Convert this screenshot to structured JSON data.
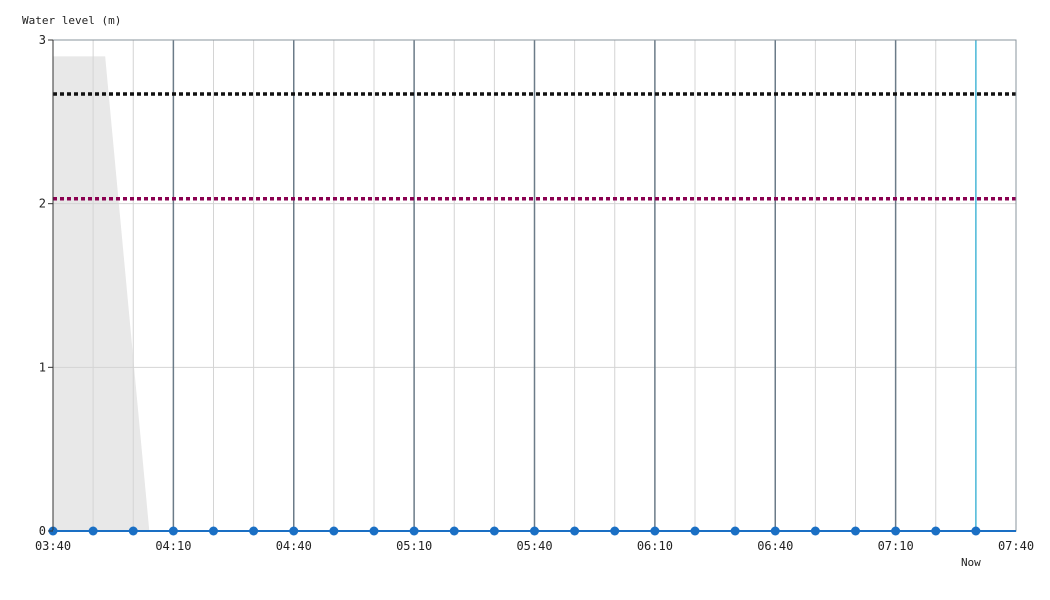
{
  "chart_data": {
    "type": "line",
    "ylabel": "Water level (m)",
    "xlabel": "",
    "ylim": [
      0,
      3
    ],
    "y_ticks": [
      "0",
      "1",
      "2",
      "3"
    ],
    "xlim": [
      "03:40",
      "07:40"
    ],
    "x_tick_labels": [
      "03:40",
      "04:10",
      "04:40",
      "05:10",
      "05:40",
      "06:10",
      "06:40",
      "07:10",
      "07:40"
    ],
    "x_minor_step_minutes": 10,
    "grid": true,
    "now_time": "07:30",
    "now_label": "Now",
    "thresholds": [
      {
        "value": 2.67,
        "color": "#111111"
      },
      {
        "value": 2.03,
        "color": "#8a0050"
      }
    ],
    "shaded_area": {
      "color": "#e8e8e8",
      "points": [
        {
          "x": "03:40",
          "y": 2.9
        },
        {
          "x": "03:53",
          "y": 2.9
        },
        {
          "x": "04:04",
          "y": 0
        }
      ]
    },
    "series": [
      {
        "color": "#1a6fc4",
        "x": [
          "03:40",
          "03:50",
          "04:00",
          "04:10",
          "04:20",
          "04:30",
          "04:40",
          "04:50",
          "05:00",
          "05:10",
          "05:20",
          "05:30",
          "05:40",
          "05:50",
          "06:00",
          "06:10",
          "06:20",
          "06:30",
          "06:40",
          "06:50",
          "07:00",
          "07:10",
          "07:20",
          "07:30"
        ],
        "values": [
          0,
          0,
          0,
          0,
          0,
          0,
          0,
          0,
          0,
          0,
          0,
          0,
          0,
          0,
          0,
          0,
          0,
          0,
          0,
          0,
          0,
          0,
          0,
          0
        ]
      }
    ]
  }
}
